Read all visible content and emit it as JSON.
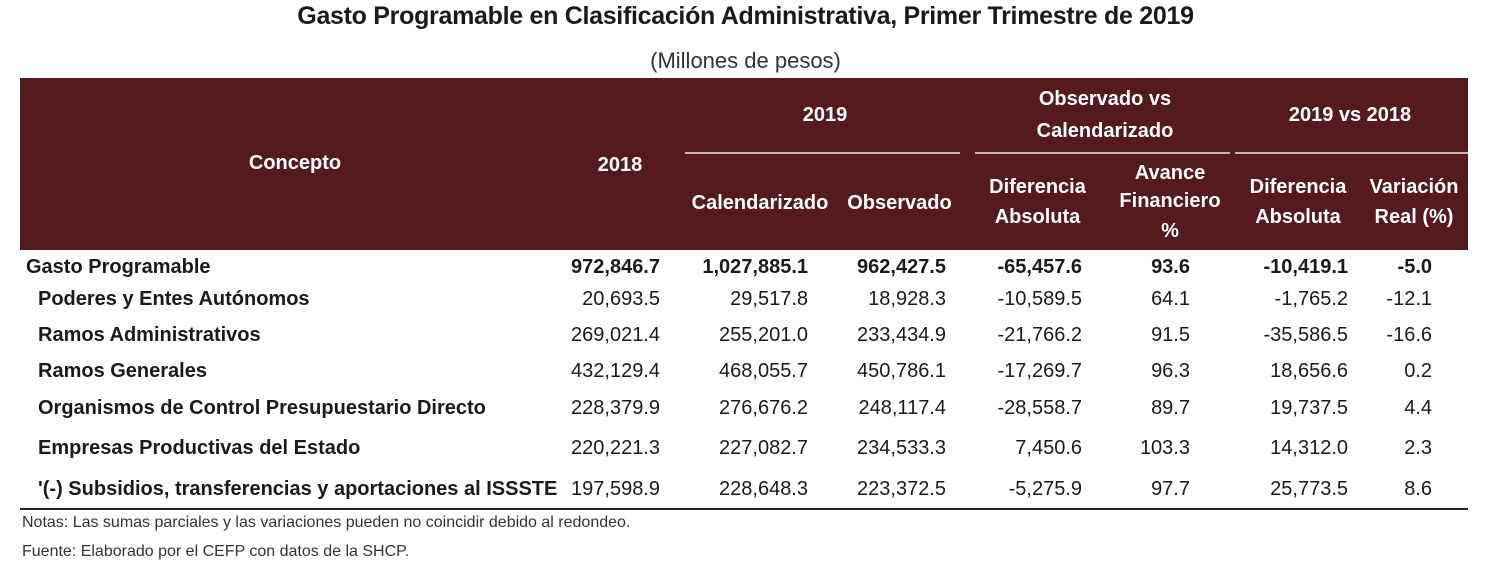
{
  "title": "Gasto Programable en Clasificación Administrativa, Primer Trimestre de 2019",
  "subtitle": "(Millones de pesos)",
  "header": {
    "concepto": "Concepto",
    "y2018": "2018",
    "y2019": "2019",
    "calendarizado": "Calendarizado",
    "observado": "Observado",
    "obs_vs_cal_line1": "Observado vs",
    "obs_vs_cal_line2": "Calendarizado",
    "dif_abs_line1": "Diferencia",
    "dif_abs_line2": "Absoluta",
    "avance_line1": "Avance",
    "avance_line2": "Financiero",
    "avance_line3": "%",
    "vs2018": "2019 vs 2018",
    "dif2_line1": "Diferencia",
    "dif2_line2": "Absoluta",
    "var_line1": "Variación",
    "var_line2": "Real (%)"
  },
  "rows": [
    {
      "label": "Gasto Programable",
      "y2018": "972,846.7",
      "cal": "1,027,885.1",
      "obs": "962,427.5",
      "dif": "-65,457.6",
      "avance": "93.6",
      "dif2": "-10,419.1",
      "var": "-5.0"
    },
    {
      "label": "Poderes y Entes Autónomos",
      "y2018": "20,693.5",
      "cal": "29,517.8",
      "obs": "18,928.3",
      "dif": "-10,589.5",
      "avance": "64.1",
      "dif2": "-1,765.2",
      "var": "-12.1"
    },
    {
      "label": "Ramos Administrativos",
      "y2018": "269,021.4",
      "cal": "255,201.0",
      "obs": "233,434.9",
      "dif": "-21,766.2",
      "avance": "91.5",
      "dif2": "-35,586.5",
      "var": "-16.6"
    },
    {
      "label": "Ramos Generales",
      "y2018": "432,129.4",
      "cal": "468,055.7",
      "obs": "450,786.1",
      "dif": "-17,269.7",
      "avance": "96.3",
      "dif2": "18,656.6",
      "var": "0.2"
    },
    {
      "label": "Organismos de Control Presupuestario Directo",
      "y2018": "228,379.9",
      "cal": "276,676.2",
      "obs": "248,117.4",
      "dif": "-28,558.7",
      "avance": "89.7",
      "dif2": "19,737.5",
      "var": "4.4"
    },
    {
      "label": "Empresas Productivas del Estado",
      "y2018": "220,221.3",
      "cal": "227,082.7",
      "obs": "234,533.3",
      "dif": "7,450.6",
      "avance": "103.3",
      "dif2": "14,312.0",
      "var": "2.3"
    },
    {
      "label": "'(-) Subsidios, transferencias y aportaciones al ISSSTE",
      "y2018": "197,598.9",
      "cal": "228,648.3",
      "obs": "223,372.5",
      "dif": "-5,275.9",
      "avance": "97.7",
      "dif2": "25,773.5",
      "var": "8.6"
    }
  ],
  "notes": {
    "notas": "Notas: Las sumas parciales y las variaciones pueden no coincidir debido al redondeo.",
    "fuente": "Fuente: Elaborado por el CEFP con datos de la SHCP."
  }
}
